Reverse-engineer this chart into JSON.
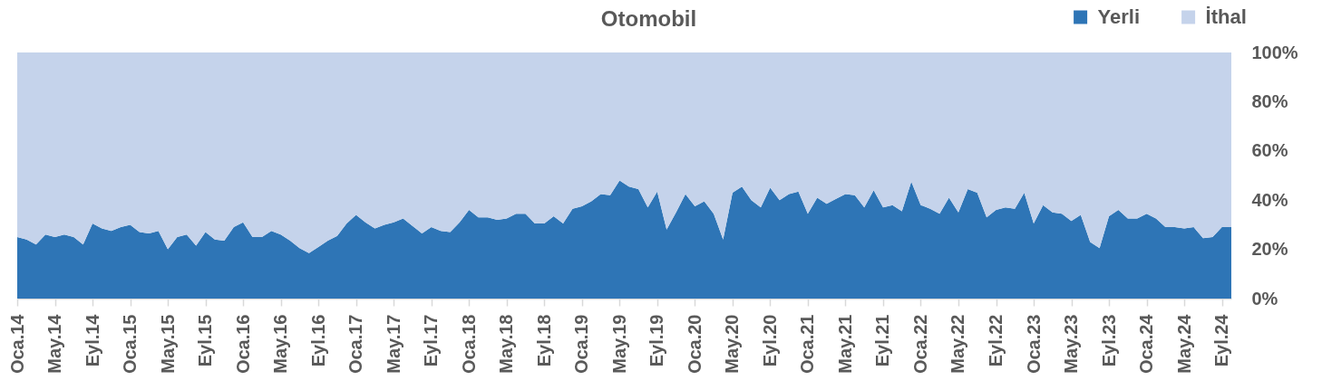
{
  "chart_data": {
    "type": "area",
    "title": "Otomobil",
    "stacked": true,
    "legend": "top right",
    "categories": [
      "Oca.14",
      null,
      null,
      null,
      "May.14",
      null,
      null,
      null,
      "Eyl.14",
      null,
      null,
      null,
      "Oca.15",
      null,
      null,
      null,
      "May.15",
      null,
      null,
      null,
      "Eyl.15",
      null,
      null,
      null,
      "Oca.16",
      null,
      null,
      null,
      "May.16",
      null,
      null,
      null,
      "Eyl.16",
      null,
      null,
      null,
      "Oca.17",
      null,
      null,
      null,
      "May.17",
      null,
      null,
      null,
      "Eyl.17",
      null,
      null,
      null,
      "Oca.18",
      null,
      null,
      null,
      "May.18",
      null,
      null,
      null,
      "Eyl.18",
      null,
      null,
      null,
      "Oca.19",
      null,
      null,
      null,
      "May.19",
      null,
      null,
      null,
      "Eyl.19",
      null,
      null,
      null,
      "Oca.20",
      null,
      null,
      null,
      "May.20",
      null,
      null,
      null,
      "Eyl.20",
      null,
      null,
      null,
      "Oca.21",
      null,
      null,
      null,
      "May.21",
      null,
      null,
      null,
      "Eyl.21",
      null,
      null,
      null,
      "Oca.22",
      null,
      null,
      null,
      "May.22",
      null,
      null,
      null,
      "Eyl.22",
      null,
      null,
      null,
      "Oca.23",
      null,
      null,
      null,
      "May.23",
      null,
      null,
      null,
      "Eyl.23",
      null,
      null,
      null,
      "Oca.24",
      null,
      null,
      null,
      "May.24",
      null,
      null,
      null,
      "Eyl.24",
      null
    ],
    "series": [
      {
        "name": "Yerli",
        "color": "#2e75b6",
        "values": [
          25,
          24,
          22,
          26,
          25,
          26,
          25,
          22,
          30.5,
          28.5,
          27.5,
          29,
          30,
          27,
          26.5,
          27.5,
          20,
          25,
          26,
          21.5,
          27,
          24,
          23.5,
          29,
          31,
          25,
          25,
          27.5,
          26,
          23.5,
          20.5,
          18.5,
          21,
          23.5,
          25.5,
          30.5,
          34,
          31,
          28.5,
          30,
          31,
          32.5,
          29.5,
          26.5,
          29,
          27.5,
          27,
          31,
          36,
          33,
          33,
          32,
          32.5,
          34.5,
          34.5,
          30.5,
          30.5,
          33.5,
          30.5,
          36.5,
          37.5,
          39.5,
          42.5,
          42,
          48,
          45.5,
          44.5,
          37,
          43.5,
          28,
          35,
          42.5,
          37.5,
          39.5,
          34.5,
          24,
          43,
          45.5,
          40,
          37,
          45,
          40,
          42.5,
          43.5,
          34.5,
          41,
          38.5,
          40.5,
          42.5,
          42,
          37,
          44,
          37,
          38,
          35.5,
          47.5,
          38,
          36.5,
          34.5,
          41,
          35,
          44.5,
          43,
          33,
          36,
          37,
          36.5,
          43,
          30.5,
          38,
          35,
          34.5,
          31.5,
          34,
          23,
          20.5,
          33.5,
          36,
          32.5,
          32.5,
          34.5,
          32.5,
          29,
          29,
          28.5,
          29,
          24.5,
          25,
          29,
          29
        ]
      },
      {
        "name": "İthal",
        "color": "#c5d3eb",
        "values": [
          75,
          76,
          78,
          74,
          75,
          74,
          75,
          78,
          69.5,
          71.5,
          72.5,
          71,
          70,
          73,
          73.5,
          72.5,
          80,
          75,
          74,
          78.5,
          73,
          76,
          76.5,
          71,
          69,
          75,
          75,
          72.5,
          74,
          76.5,
          79.5,
          81.5,
          79,
          76.5,
          74.5,
          69.5,
          66,
          69,
          71.5,
          70,
          69,
          67.5,
          70.5,
          73.5,
          71,
          72.5,
          73,
          69,
          64,
          67,
          67,
          68,
          67.5,
          65.5,
          65.5,
          69.5,
          69.5,
          66.5,
          69.5,
          63.5,
          62.5,
          60.5,
          57.5,
          58,
          52,
          54.5,
          55.5,
          63,
          56.5,
          72,
          65,
          57.5,
          62.5,
          60.5,
          65.5,
          76,
          57,
          54.5,
          60,
          63,
          55,
          60,
          57.5,
          56.5,
          65.5,
          59,
          61.5,
          59.5,
          57.5,
          58,
          63,
          56,
          63,
          62,
          64.5,
          52.5,
          62,
          63.5,
          65.5,
          59,
          65,
          55.5,
          57,
          67,
          64,
          63,
          63.5,
          57,
          69.5,
          62,
          65,
          65.5,
          68.5,
          66,
          77,
          79.5,
          66.5,
          64,
          67.5,
          67.5,
          65.5,
          67.5,
          71,
          71,
          71.5,
          71,
          75.5,
          75,
          71,
          71
        ]
      }
    ],
    "ylim": [
      0,
      100
    ],
    "yticks": [
      {
        "value": 0,
        "label": "0%"
      },
      {
        "value": 20,
        "label": "20%"
      },
      {
        "value": 40,
        "label": "40%"
      },
      {
        "value": 60,
        "label": "60%"
      },
      {
        "value": 80,
        "label": "80%"
      },
      {
        "value": 100,
        "label": "100%"
      }
    ]
  }
}
